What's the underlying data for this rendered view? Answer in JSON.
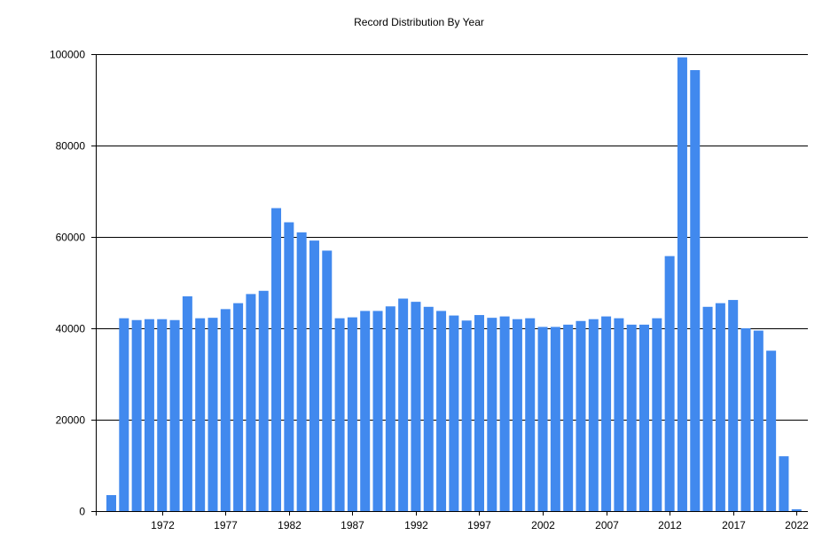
{
  "chart_data": {
    "type": "bar",
    "title": "Record Distribution By Year",
    "xlabel": "",
    "ylabel": "",
    "ylim": [
      0,
      100000
    ],
    "yticks": [
      0,
      20000,
      40000,
      60000,
      80000,
      100000
    ],
    "xticks": [
      1972,
      1977,
      1982,
      1987,
      1992,
      1997,
      2002,
      2007,
      2012,
      2017,
      2022
    ],
    "grid": true,
    "legend": "none",
    "bar_color": "#4189ee",
    "categories": [
      1968,
      1969,
      1970,
      1971,
      1972,
      1973,
      1974,
      1975,
      1976,
      1977,
      1978,
      1979,
      1980,
      1981,
      1982,
      1983,
      1984,
      1985,
      1986,
      1987,
      1988,
      1989,
      1990,
      1991,
      1992,
      1993,
      1994,
      1995,
      1996,
      1997,
      1998,
      1999,
      2000,
      2001,
      2002,
      2003,
      2004,
      2005,
      2006,
      2007,
      2008,
      2009,
      2010,
      2011,
      2012,
      2013,
      2014,
      2015,
      2016,
      2017,
      2018,
      2019,
      2020,
      2021,
      2022
    ],
    "values": [
      3500,
      42200,
      41800,
      42000,
      42000,
      41800,
      47000,
      42200,
      42300,
      44200,
      45500,
      47500,
      48200,
      66300,
      63200,
      61000,
      59200,
      57000,
      42200,
      42400,
      43800,
      43800,
      44800,
      46500,
      45800,
      44700,
      43800,
      42800,
      41700,
      42900,
      42300,
      42600,
      42000,
      42200,
      40300,
      40300,
      40800,
      41600,
      42000,
      42600,
      42200,
      40800,
      40800,
      42200,
      55800,
      99300,
      96500,
      44700,
      45500,
      46200,
      40000,
      39500,
      35100,
      12000,
      400
    ]
  }
}
